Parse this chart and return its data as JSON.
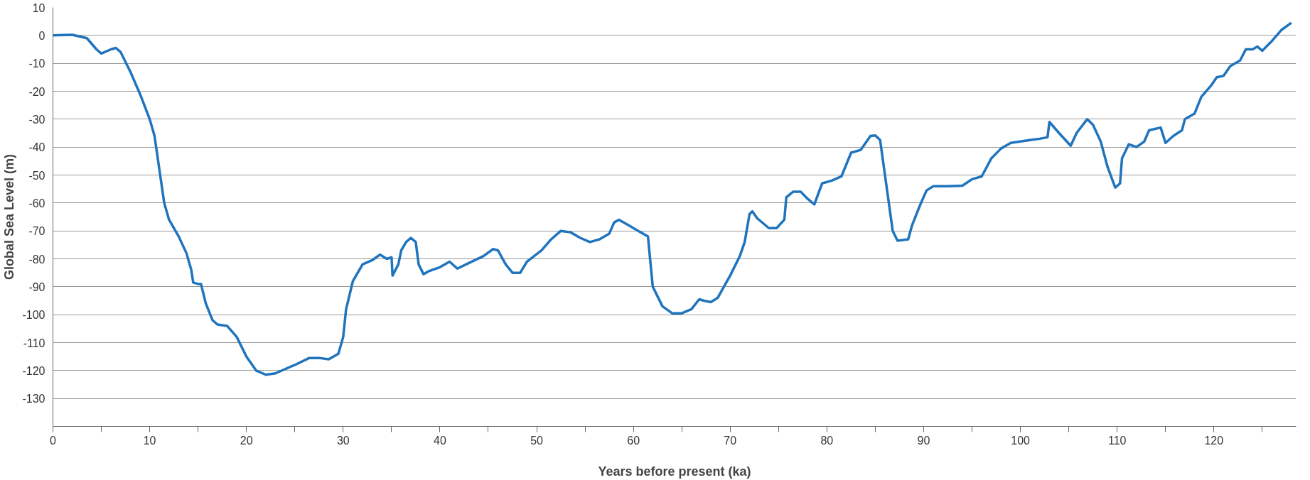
{
  "chart_data": {
    "type": "line",
    "xlabel": "Years before present (ka)",
    "ylabel": "Global Sea Level (m)",
    "xlim": [
      0,
      128.5
    ],
    "ylim": [
      -140,
      10
    ],
    "xticks": [
      0,
      {
        "value": 5,
        "label": null
      },
      10,
      {
        "value": 15,
        "label": null
      },
      20,
      {
        "value": 25,
        "label": null
      },
      30,
      {
        "value": 35,
        "label": null
      },
      40,
      {
        "value": 45,
        "label": null
      },
      50,
      {
        "value": 55,
        "label": null
      },
      60,
      {
        "value": 65,
        "label": null
      },
      70,
      {
        "value": 75,
        "label": null
      },
      80,
      {
        "value": 85,
        "label": null
      },
      90,
      {
        "value": 95,
        "label": null
      },
      100,
      {
        "value": 105,
        "label": null
      },
      110,
      {
        "value": 115,
        "label": null
      },
      120,
      {
        "value": 125,
        "label": null
      }
    ],
    "yticks": [
      10,
      0,
      -10,
      -20,
      -30,
      -40,
      -50,
      -60,
      -70,
      -80,
      -90,
      -100,
      -110,
      -120,
      -130
    ],
    "grid": "y",
    "line_style": "solid",
    "series": [
      {
        "color": "#1f74bd",
        "x": [
          0,
          2,
          3.5,
          4.5,
          5,
          6,
          6.5,
          7,
          8,
          9,
          10,
          10.5,
          11,
          11.5,
          12,
          13,
          13.8,
          14.3,
          14.5,
          15,
          15.3,
          15.8,
          16.5,
          17,
          18,
          19,
          20,
          21,
          22,
          23,
          25,
          26.5,
          27.5,
          28.5,
          29.5,
          30,
          30.3,
          31,
          32,
          33,
          33.8,
          34.5,
          35,
          35.1,
          35.7,
          36,
          36.5,
          37,
          37.5,
          37.8,
          38.3,
          38.8,
          40,
          41,
          41.8,
          43,
          44.5,
          45.5,
          46,
          46.8,
          47.5,
          48.3,
          49,
          50.5,
          51.5,
          52.5,
          53.5,
          54.5,
          55.5,
          56.5,
          57.5,
          58,
          58.5,
          59.5,
          60.5,
          61.5,
          62,
          63,
          64,
          65,
          66,
          66.8,
          67.3,
          68,
          68.7,
          70,
          71,
          71.5,
          72,
          72.3,
          72.8,
          74,
          74.8,
          75.6,
          75.8,
          76.5,
          77.3,
          78,
          78.7,
          79.5,
          80.5,
          81.5,
          82.5,
          83.5,
          84.5,
          85,
          85.5,
          86.8,
          87.3,
          88.4,
          88.8,
          89.6,
          90.3,
          91,
          92.5,
          94,
          95,
          96,
          97,
          98,
          99,
          100,
          101,
          102,
          102.8,
          103,
          104,
          105.2,
          105.8,
          106.9,
          107.5,
          108.3,
          109,
          109.8,
          110.3,
          110.5,
          111.2,
          112,
          112.8,
          113.3,
          114.5,
          115,
          115.8,
          116.7,
          117,
          118,
          118.7,
          119.7,
          120.3,
          121,
          121.7,
          122.7,
          123.3,
          124,
          124.5,
          125,
          126,
          127,
          128
        ],
        "values": [
          0,
          0.2,
          -1,
          -5,
          -6.5,
          -5,
          -4.5,
          -6,
          -13,
          -21,
          -30,
          -36,
          -48,
          -60,
          -66,
          -72,
          -78,
          -84,
          -88.5,
          -89,
          -89,
          -96,
          -102,
          -103.5,
          -104,
          -108,
          -115,
          -120,
          -121.5,
          -121,
          -118,
          -115.5,
          -115.5,
          -116,
          -114,
          -108,
          -98,
          -88,
          -82,
          -80.5,
          -78.5,
          -80,
          -79.5,
          -86,
          -82,
          -77,
          -74,
          -72.5,
          -74,
          -82,
          -85.5,
          -84.5,
          -83,
          -81,
          -83.5,
          -81.5,
          -79,
          -76.5,
          -77,
          -82,
          -85,
          -85,
          -81,
          -77,
          -73,
          -70,
          -70.5,
          -72.5,
          -74,
          -73,
          -71,
          -67,
          -66,
          -68,
          -70,
          -72,
          -90,
          -97,
          -99.5,
          -99.5,
          -98,
          -94.5,
          -95,
          -95.5,
          -94,
          -86,
          -79,
          -74,
          -64,
          -63,
          -65.5,
          -69,
          -69,
          -66,
          -58,
          -56,
          -56,
          -58.5,
          -60.5,
          -53,
          -52,
          -50.5,
          -42,
          -41,
          -36,
          -35.8,
          -37.5,
          -70,
          -73.5,
          -73,
          -68,
          -61,
          -55.5,
          -54,
          -54,
          -53.8,
          -51.5,
          -50.5,
          -44,
          -40.5,
          -38.5,
          -38,
          -37.5,
          -37,
          -36.5,
          -31,
          -35,
          -39.5,
          -35,
          -30,
          -32,
          -38,
          -47,
          -54.5,
          -53,
          -44,
          -39,
          -40,
          -38,
          -34,
          -33,
          -38.5,
          -36,
          -34,
          -30,
          -28,
          -22,
          -18,
          -15,
          -14.5,
          -11,
          -9,
          -5,
          -5,
          -4,
          -5.5,
          -2,
          2,
          4.5
        ]
      }
    ]
  }
}
